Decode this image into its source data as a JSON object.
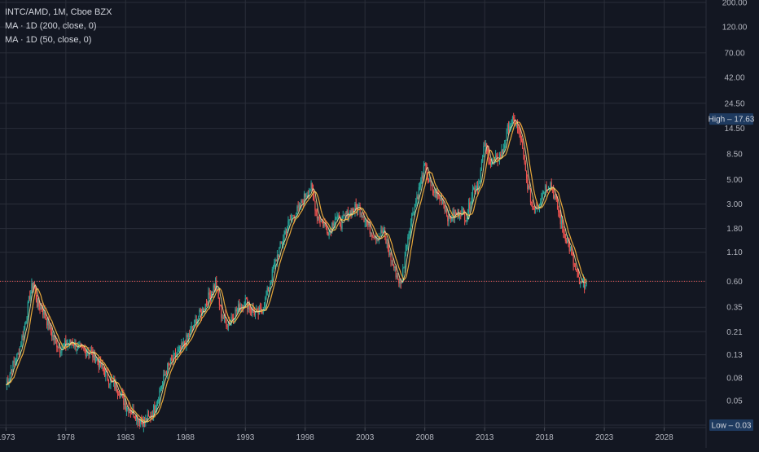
{
  "legend": {
    "title": "INTC/AMD, 1M, Cboe BZX",
    "ma1": "MA · 1D (200, close, 0)",
    "ma2": "MA · 1D (50, close, 0)"
  },
  "badges": {
    "high": "High  –  17.63",
    "low": "Low  –  0.03"
  },
  "colors": {
    "background": "#131722",
    "grid": "#2a2e39",
    "up": "#26a69a",
    "down": "#ef5350",
    "ma200": "#e8a83a",
    "ma50": "#f0e6a0",
    "current_line": "#ef5350",
    "badge_high": "#1e3a5f",
    "badge_low": "#1e3a5f"
  },
  "chart_data": {
    "type": "line",
    "title": "INTC/AMD, 1M, Cboe BZX",
    "xlabel": "",
    "ylabel": "",
    "y_scale": "log",
    "ylim": [
      0.03,
      200
    ],
    "xlim": [
      1972.5,
      2031.5
    ],
    "x_ticks": [
      "1973",
      "1978",
      "1983",
      "1988",
      "1993",
      "1998",
      "2003",
      "2008",
      "2013",
      "2018",
      "2023",
      "2028"
    ],
    "y_ticks": [
      "200.00",
      "120.00",
      "70.00",
      "42.00",
      "24.50",
      "14.50",
      "8.50",
      "5.00",
      "3.00",
      "1.80",
      "1.10",
      "0.60",
      "0.35",
      "0.21",
      "0.13",
      "0.08",
      "0.05",
      "0.03"
    ],
    "current_value": 0.6,
    "high": 17.63,
    "low": 0.03,
    "grid": true,
    "series": [
      {
        "name": "INTC/AMD",
        "x": [
          1973.0,
          1973.5,
          1974.0,
          1974.5,
          1975.0,
          1975.3,
          1975.6,
          1976.0,
          1976.5,
          1977.0,
          1977.5,
          1978.0,
          1978.5,
          1979.0,
          1979.5,
          1980.0,
          1980.5,
          1981.0,
          1981.5,
          1982.0,
          1982.5,
          1983.0,
          1983.5,
          1984.0,
          1984.5,
          1985.0,
          1985.5,
          1986.0,
          1986.5,
          1987.0,
          1987.5,
          1988.0,
          1988.5,
          1989.0,
          1989.5,
          1990.0,
          1990.5,
          1991.0,
          1991.5,
          1992.0,
          1992.5,
          1993.0,
          1993.5,
          1994.0,
          1994.5,
          1995.0,
          1995.5,
          1996.0,
          1996.5,
          1997.0,
          1997.5,
          1998.0,
          1998.5,
          1999.0,
          1999.5,
          2000.0,
          2000.5,
          2001.0,
          2001.5,
          2002.0,
          2002.5,
          2003.0,
          2003.5,
          2004.0,
          2004.5,
          2005.0,
          2005.5,
          2006.0,
          2006.5,
          2007.0,
          2007.5,
          2008.0,
          2008.5,
          2009.0,
          2009.5,
          2010.0,
          2010.5,
          2011.0,
          2011.5,
          2012.0,
          2012.5,
          2013.0,
          2013.5,
          2014.0,
          2014.5,
          2015.0,
          2015.5,
          2016.0,
          2016.5,
          2017.0,
          2017.5,
          2018.0,
          2018.5,
          2019.0,
          2019.5,
          2020.0,
          2020.5,
          2021.0,
          2021.5
        ],
        "values": [
          0.07,
          0.1,
          0.13,
          0.22,
          0.45,
          0.6,
          0.38,
          0.34,
          0.25,
          0.18,
          0.15,
          0.16,
          0.17,
          0.15,
          0.14,
          0.14,
          0.12,
          0.1,
          0.08,
          0.07,
          0.06,
          0.045,
          0.04,
          0.035,
          0.032,
          0.035,
          0.045,
          0.07,
          0.1,
          0.12,
          0.14,
          0.17,
          0.22,
          0.28,
          0.34,
          0.45,
          0.58,
          0.3,
          0.25,
          0.3,
          0.35,
          0.4,
          0.33,
          0.3,
          0.35,
          0.55,
          0.9,
          1.3,
          1.9,
          2.4,
          2.7,
          3.6,
          4.2,
          2.4,
          2.0,
          1.7,
          2.3,
          2.0,
          2.4,
          2.7,
          2.8,
          2.2,
          1.7,
          1.5,
          1.7,
          1.1,
          0.75,
          0.55,
          1.4,
          2.6,
          4.0,
          6.6,
          4.2,
          3.6,
          3.2,
          2.2,
          2.4,
          2.6,
          2.3,
          4.0,
          4.6,
          10.5,
          7.0,
          7.5,
          9.0,
          15.5,
          17.0,
          12.0,
          5.0,
          2.8,
          3.0,
          4.2,
          4.6,
          3.0,
          1.8,
          1.3,
          0.8,
          0.55,
          0.6
        ]
      }
    ]
  }
}
